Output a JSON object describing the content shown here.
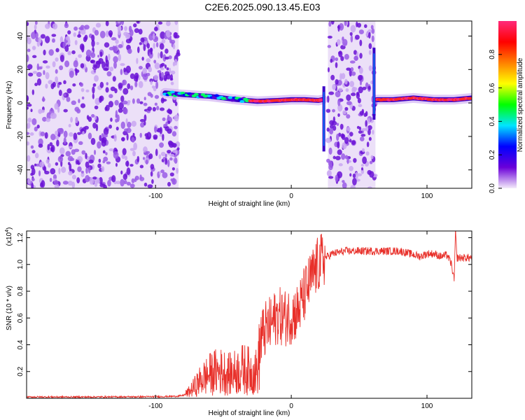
{
  "title": "C2E6.2025.090.13.45.E03",
  "chart_data": [
    {
      "type": "heatmap",
      "xlabel": "Height of straight line (km)",
      "ylabel": "Frequency (Hz)",
      "xlim": [
        -195,
        133
      ],
      "ylim": [
        -51,
        49
      ],
      "xticks": [
        -100,
        0,
        100
      ],
      "yticks": [
        -40,
        -20,
        0,
        20,
        40
      ],
      "colorbar": {
        "label": "Normalized spectral amplitude",
        "range": [
          0.0,
          1.0
        ],
        "ticks": [
          "0.0",
          "0.2",
          "0.4",
          "0.6",
          "0.8"
        ],
        "tick_values": [
          0.0,
          0.2,
          0.4,
          0.6,
          0.8
        ],
        "colors": [
          "#f4ecfa",
          "#6a00d9",
          "#0000ff",
          "#00e5ff",
          "#00ff00",
          "#ffff00",
          "#ff8000",
          "#ff0000",
          "#ff2a7a"
        ]
      },
      "noise_regions": [
        [
          -195,
          -83
        ],
        [
          27,
          62
        ]
      ],
      "line_segments": [
        {
          "x": [
            -93,
            -80,
            -60,
            -40,
            -25,
            -10,
            0,
            10,
            20,
            23
          ],
          "freq": [
            6,
            5,
            4,
            2,
            1,
            1.5,
            2,
            2,
            1.5,
            2
          ]
        },
        {
          "x": [
            63,
            75,
            90,
            105,
            120,
            133
          ],
          "freq": [
            2,
            2,
            3,
            2,
            2,
            3
          ]
        }
      ],
      "spikes": [
        {
          "x": 24,
          "freq_range": [
            -29,
            10
          ]
        },
        {
          "x": 61,
          "freq_range": [
            -10,
            33
          ]
        }
      ]
    },
    {
      "type": "line",
      "xlabel": "Height of straight line (km)",
      "ylabel": "SNR (10 * v/v)",
      "y_multiplier": "(x10",
      "y_multiplier_exp": "4",
      "y_multiplier_close": ")",
      "xlim": [
        -195,
        133
      ],
      "ylim": [
        0,
        1.25
      ],
      "xticks": [
        -100,
        0,
        100
      ],
      "yticks": [
        "0.2",
        "0.4",
        "0.6",
        "0.8",
        "1.0",
        "1.2"
      ],
      "ytick_values": [
        0.2,
        0.4,
        0.6,
        0.8,
        1.0,
        1.2
      ],
      "series": [
        {
          "color": "#e8302a",
          "x": [
            -195,
            -150,
            -100,
            -85,
            -80,
            -75,
            -70,
            -65,
            -60,
            -55,
            -50,
            -45,
            -40,
            -35,
            -30,
            -25,
            -22,
            -20,
            -15,
            -10,
            -5,
            0,
            5,
            10,
            15,
            20,
            25,
            30,
            40,
            60,
            80,
            95,
            100,
            105,
            110,
            115,
            118,
            120,
            121,
            122,
            125,
            133
          ],
          "y": [
            0.01,
            0.01,
            0.012,
            0.015,
            0.02,
            0.05,
            0.1,
            0.15,
            0.18,
            0.2,
            0.2,
            0.18,
            0.2,
            0.22,
            0.2,
            0.2,
            0.45,
            0.5,
            0.55,
            0.62,
            0.6,
            0.62,
            0.65,
            0.78,
            0.9,
            1.0,
            1.05,
            1.08,
            1.1,
            1.1,
            1.1,
            1.06,
            1.08,
            1.08,
            1.06,
            1.07,
            1.0,
            0.88,
            1.25,
            1.05,
            1.05,
            1.05
          ]
        }
      ]
    }
  ]
}
